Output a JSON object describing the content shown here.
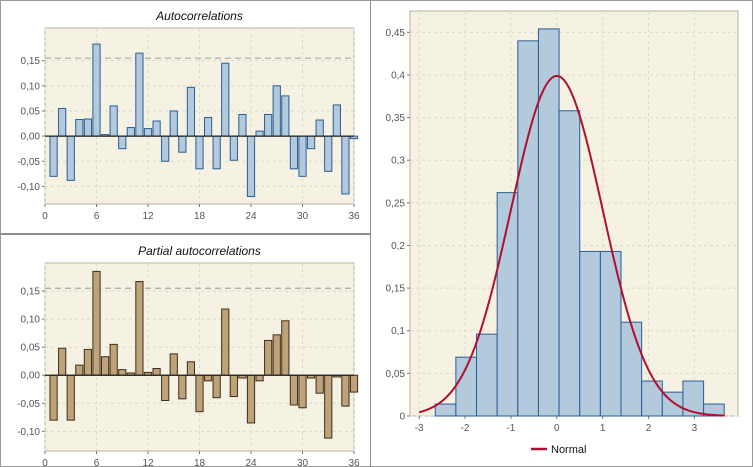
{
  "colors": {
    "plot_bg": "#f5f2e3",
    "grid": "#dcd9c8",
    "acf_fill": "#b3c9dc",
    "acf_stroke": "#2a5d94",
    "pacf_fill": "#bda27a",
    "pacf_stroke": "#3e2e18",
    "hist_fill": "#b3c9dc",
    "hist_stroke": "#2a5d94",
    "normal_line": "#b01030",
    "bound_line": "#a8a8a8",
    "axis_text": "#555555"
  },
  "chart_data": [
    {
      "type": "bar",
      "title": "Autocorrelations",
      "x": [
        1,
        2,
        3,
        4,
        5,
        6,
        7,
        8,
        9,
        10,
        11,
        12,
        13,
        14,
        15,
        16,
        17,
        18,
        19,
        20,
        21,
        22,
        23,
        24,
        25,
        26,
        27,
        28,
        29,
        30,
        31,
        32,
        33,
        34,
        35,
        36
      ],
      "values": [
        -0.08,
        0.055,
        -0.088,
        0.033,
        0.034,
        0.183,
        0.003,
        0.06,
        -0.025,
        0.017,
        0.165,
        0.015,
        0.03,
        -0.05,
        0.05,
        -0.032,
        0.097,
        -0.065,
        0.037,
        -0.065,
        0.145,
        -0.048,
        0.043,
        -0.12,
        0.01,
        0.043,
        0.1,
        0.08,
        -0.065,
        -0.08,
        -0.025,
        0.032,
        -0.07,
        0.062,
        -0.115,
        -0.005
      ],
      "bound": 0.155,
      "xlim": [
        0,
        36
      ],
      "ylim": [
        -0.135,
        0.215
      ],
      "xticks": [
        0,
        6,
        12,
        18,
        24,
        30,
        36
      ],
      "xtick_labels": [
        "0",
        "6",
        "12",
        "18",
        "24",
        "30",
        "36"
      ],
      "yticks": [
        -0.1,
        -0.05,
        0,
        0.05,
        0.1,
        0.15
      ],
      "ytick_labels": [
        "-0,10",
        "-0,05",
        "0,00",
        "0,05",
        "0,10",
        "0,15"
      ]
    },
    {
      "type": "bar",
      "title": "Partial autocorrelations",
      "x": [
        1,
        2,
        3,
        4,
        5,
        6,
        7,
        8,
        9,
        10,
        11,
        12,
        13,
        14,
        15,
        16,
        17,
        18,
        19,
        20,
        21,
        22,
        23,
        24,
        25,
        26,
        27,
        28,
        29,
        30,
        31,
        32,
        33,
        34,
        35,
        36
      ],
      "values": [
        -0.08,
        0.048,
        -0.08,
        0.018,
        0.046,
        0.185,
        0.033,
        0.055,
        0.01,
        0.004,
        0.167,
        0.005,
        0.012,
        -0.045,
        0.038,
        -0.042,
        0.024,
        -0.065,
        -0.01,
        -0.04,
        0.118,
        -0.038,
        -0.005,
        -0.085,
        -0.01,
        0.062,
        0.072,
        0.097,
        -0.053,
        -0.058,
        -0.005,
        -0.032,
        -0.112,
        -0.003,
        -0.055,
        -0.03
      ],
      "bound": 0.155,
      "xlim": [
        0,
        36
      ],
      "ylim": [
        -0.135,
        0.2
      ],
      "xticks": [
        0,
        6,
        12,
        18,
        24,
        30,
        36
      ],
      "xtick_labels": [
        "0",
        "6",
        "12",
        "18",
        "24",
        "30",
        "36"
      ],
      "yticks": [
        -0.1,
        -0.05,
        0,
        0.05,
        0.1,
        0.15
      ],
      "ytick_labels": [
        "-0,10",
        "-0,05",
        "0,00",
        "0,05",
        "0,10",
        "0,15"
      ]
    },
    {
      "type": "histogram",
      "title": "",
      "bins": [
        {
          "x0": -2.65,
          "x1": -2.2,
          "density": 0.014
        },
        {
          "x0": -2.2,
          "x1": -1.75,
          "density": 0.069
        },
        {
          "x0": -1.75,
          "x1": -1.3,
          "density": 0.096
        },
        {
          "x0": -1.3,
          "x1": -0.85,
          "density": 0.262
        },
        {
          "x0": -0.85,
          "x1": -0.4,
          "density": 0.44
        },
        {
          "x0": -0.4,
          "x1": 0.05,
          "density": 0.454
        },
        {
          "x0": 0.05,
          "x1": 0.5,
          "density": 0.358
        },
        {
          "x0": 0.5,
          "x1": 0.95,
          "density": 0.193
        },
        {
          "x0": 0.95,
          "x1": 1.4,
          "density": 0.193
        },
        {
          "x0": 1.4,
          "x1": 1.85,
          "density": 0.11
        },
        {
          "x0": 1.85,
          "x1": 2.3,
          "density": 0.041
        },
        {
          "x0": 2.3,
          "x1": 2.75,
          "density": 0.028
        },
        {
          "x0": 2.75,
          "x1": 3.2,
          "density": 0.041
        },
        {
          "x0": 3.2,
          "x1": 3.65,
          "density": 0.014
        }
      ],
      "normal": {
        "name": "Normal",
        "mean": 0,
        "sd": 1,
        "xrange": [
          -3,
          3.65
        ]
      },
      "xlim": [
        -3.2,
        3.95
      ],
      "ylim": [
        0,
        0.475
      ],
      "xticks": [
        -3,
        -2,
        -1,
        0,
        1,
        2,
        3
      ],
      "xtick_labels": [
        "-3",
        "-2",
        "-1",
        "0",
        "1",
        "2",
        "3"
      ],
      "yticks": [
        0,
        0.05,
        0.1,
        0.15,
        0.2,
        0.25,
        0.3,
        0.35,
        0.4,
        0.45
      ],
      "ytick_labels": [
        "0",
        "0,05",
        "0,1",
        "0,15",
        "0,2",
        "0,25",
        "0,3",
        "0,35",
        "0,4",
        "0,45"
      ],
      "legend": {
        "label": "Normal",
        "position": "bottom-center"
      }
    }
  ]
}
